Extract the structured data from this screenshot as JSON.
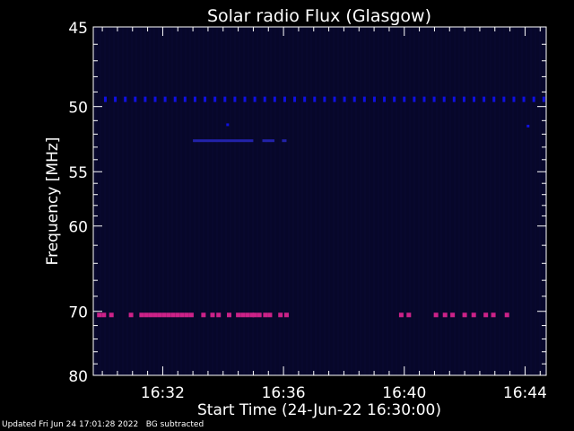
{
  "chart_data": {
    "type": "heatmap",
    "title": "Solar radio Flux (Glasgow)",
    "xlabel": "Start Time (24-Jun-22 16:30:00)",
    "ylabel": "Frequency [MHz]",
    "x_unit": "minutes after 16:30",
    "xlim": [
      -0.3,
      14.7
    ],
    "ylim": [
      45,
      80
    ],
    "y_ticks": [
      45,
      50,
      55,
      60,
      70,
      80
    ],
    "y_tick_labels": [
      "45",
      "50",
      "55",
      "60",
      "70",
      "80"
    ],
    "x_ticks": [
      2,
      6,
      10,
      14
    ],
    "x_tick_labels": [
      "16:32",
      "16:36",
      "16:40",
      "16:44"
    ],
    "colors": {
      "background": "#000000",
      "plot_background": "#07072a",
      "stripe_50": "#1010e0",
      "band_52": "#2222aa",
      "band_70": "#cc2288",
      "axes": "#ffffff"
    },
    "series": [
      {
        "frequency_mhz": 49.5,
        "minutes": [
          0.1,
          0.43,
          0.76,
          1.09,
          1.42,
          1.75,
          2.08,
          2.41,
          2.74,
          3.07,
          3.4,
          3.73,
          4.06,
          4.39,
          4.72,
          5.05,
          5.38,
          5.71,
          6.04,
          6.37,
          6.7,
          7.03,
          7.36,
          7.69,
          8.02,
          8.35,
          8.68,
          9.01,
          9.34,
          9.67,
          10.0,
          10.33,
          10.66,
          10.99,
          11.32,
          11.65,
          11.98,
          12.31,
          12.64,
          12.97,
          13.3,
          13.63,
          13.96,
          14.29,
          14.62
        ],
        "level": "medium"
      },
      {
        "frequency_mhz": 52.5,
        "segments": [
          [
            3.0,
            5.0
          ],
          [
            5.3,
            5.7
          ],
          [
            5.95,
            6.1
          ]
        ],
        "level": "low"
      },
      {
        "frequency_mhz": 70.5,
        "minutes": [
          -0.1,
          0.05,
          0.3,
          0.95,
          1.3,
          1.45,
          1.6,
          1.75,
          1.9,
          2.05,
          2.2,
          2.35,
          2.5,
          2.65,
          2.8,
          2.95,
          3.35,
          3.65,
          3.85,
          4.2,
          4.5,
          4.65,
          4.8,
          4.95,
          5.05,
          5.2,
          5.4,
          5.55,
          5.9,
          6.1,
          9.9,
          10.15,
          11.05,
          11.35,
          11.6,
          12.0,
          12.3,
          12.7,
          12.95,
          13.4
        ],
        "level": "high"
      }
    ],
    "isolated_points": [
      {
        "minute": 4.15,
        "frequency_mhz": 51.3
      },
      {
        "minute": 14.1,
        "frequency_mhz": 51.4
      }
    ]
  },
  "footer": "Updated Fri Jun 24 17:01:28 2022   BG subtracted"
}
